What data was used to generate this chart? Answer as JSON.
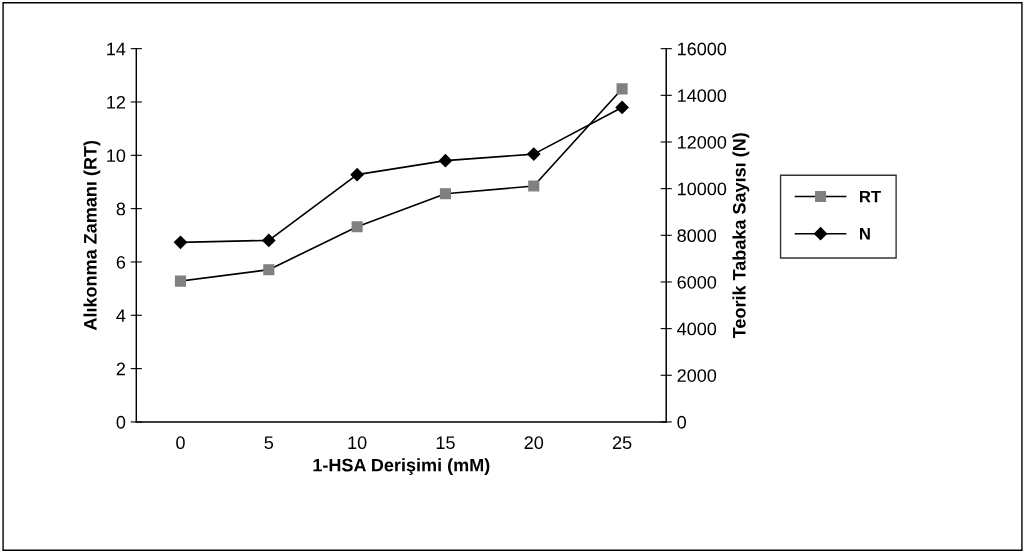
{
  "chart_data": {
    "type": "line",
    "categories": [
      "0",
      "5",
      "10",
      "15",
      "20",
      "25"
    ],
    "xlabel": "1-HSA Derişimi (mM)",
    "ylabel": "Alıkonma Zamanı (RT)",
    "y2label": "Teorik Tabaka Sayısı (N)",
    "ylim": [
      0,
      14
    ],
    "yticks": [
      0,
      2,
      4,
      6,
      8,
      10,
      12,
      14
    ],
    "y2lim": [
      0,
      16000
    ],
    "y2ticks": [
      0,
      2000,
      4000,
      6000,
      8000,
      10000,
      12000,
      14000,
      16000
    ],
    "series": [
      {
        "name": "RT",
        "color": "#808080",
        "marker": "square",
        "values": [
          5.28,
          5.71,
          7.32,
          8.56,
          8.85,
          12.49
        ]
      },
      {
        "name": "N",
        "color": "#000000",
        "marker": "diamond",
        "axis": "y2",
        "values": [
          7700,
          7780,
          10600,
          11200,
          11480,
          13480
        ]
      }
    ],
    "legend": "right",
    "grid": false
  }
}
